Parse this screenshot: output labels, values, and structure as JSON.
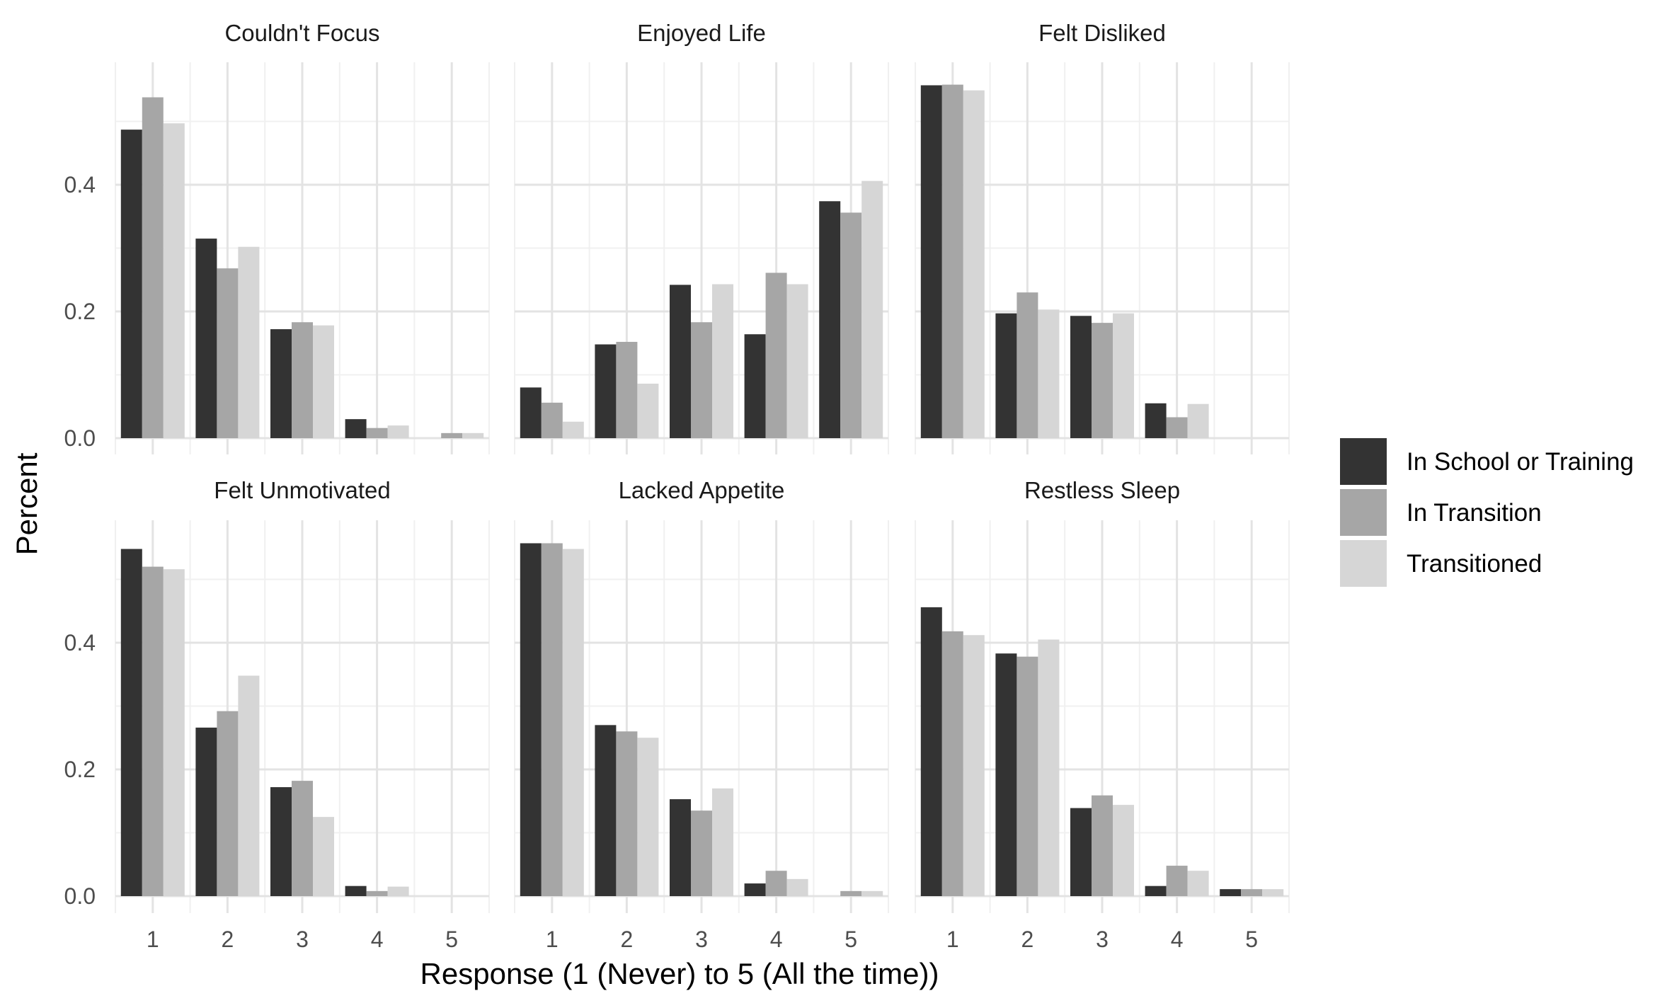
{
  "chart_data": {
    "type": "bar",
    "subtype": "faceted-grouped",
    "xlabel": "Response (1 (Never) to 5 (All the time))",
    "ylabel": "Percent",
    "categories": [
      "1",
      "2",
      "3",
      "4",
      "5"
    ],
    "yticks": [
      "0.0",
      "0.2",
      "0.4"
    ],
    "ylim": [
      0,
      0.57
    ],
    "grid": true,
    "legend_position": "right",
    "series_names": [
      "In School or Training",
      "In Transition",
      "Transitioned"
    ],
    "series_colors": [
      "#333333",
      "#a6a6a6",
      "#d6d6d6"
    ],
    "facets": [
      {
        "title": "Couldn't Focus",
        "series": [
          {
            "name": "In School or Training",
            "values": [
              0.487,
              0.315,
              0.172,
              0.03,
              0.0
            ]
          },
          {
            "name": "In Transition",
            "values": [
              0.538,
              0.268,
              0.183,
              0.016,
              0.008
            ]
          },
          {
            "name": "Transitioned",
            "values": [
              0.497,
              0.302,
              0.178,
              0.02,
              0.008
            ]
          }
        ]
      },
      {
        "title": "Enjoyed Life",
        "series": [
          {
            "name": "In School or Training",
            "values": [
              0.08,
              0.148,
              0.242,
              0.164,
              0.374
            ]
          },
          {
            "name": "In Transition",
            "values": [
              0.056,
              0.152,
              0.183,
              0.261,
              0.356
            ]
          },
          {
            "name": "Transitioned",
            "values": [
              0.026,
              0.086,
              0.243,
              0.243,
              0.406
            ]
          }
        ]
      },
      {
        "title": "Felt Disliked",
        "series": [
          {
            "name": "In School or Training",
            "values": [
              0.557,
              0.197,
              0.193,
              0.055,
              0.0
            ]
          },
          {
            "name": "In Transition",
            "values": [
              0.558,
              0.23,
              0.182,
              0.033,
              0.0
            ]
          },
          {
            "name": "Transitioned",
            "values": [
              0.549,
              0.203,
              0.197,
              0.054,
              0.0
            ]
          }
        ]
      },
      {
        "title": "Felt Unmotivated",
        "series": [
          {
            "name": "In School or Training",
            "values": [
              0.548,
              0.266,
              0.172,
              0.016,
              0.0
            ]
          },
          {
            "name": "In Transition",
            "values": [
              0.52,
              0.292,
              0.182,
              0.008,
              0.0
            ]
          },
          {
            "name": "Transitioned",
            "values": [
              0.516,
              0.348,
              0.125,
              0.015,
              0.0
            ]
          }
        ]
      },
      {
        "title": "Lacked Appetite",
        "series": [
          {
            "name": "In School or Training",
            "values": [
              0.557,
              0.27,
              0.153,
              0.02,
              0.0
            ]
          },
          {
            "name": "In Transition",
            "values": [
              0.557,
              0.26,
              0.135,
              0.04,
              0.008
            ]
          },
          {
            "name": "Transitioned",
            "values": [
              0.548,
              0.25,
              0.17,
              0.027,
              0.008
            ]
          }
        ]
      },
      {
        "title": "Restless Sleep",
        "series": [
          {
            "name": "In School or Training",
            "values": [
              0.456,
              0.383,
              0.139,
              0.016,
              0.011
            ]
          },
          {
            "name": "In Transition",
            "values": [
              0.418,
              0.378,
              0.159,
              0.048,
              0.011
            ]
          },
          {
            "name": "Transitioned",
            "values": [
              0.412,
              0.405,
              0.144,
              0.04,
              0.011
            ]
          }
        ]
      }
    ]
  }
}
